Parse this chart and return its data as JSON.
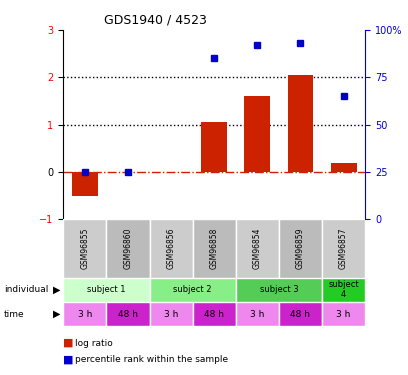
{
  "title": "GDS1940 / 4523",
  "samples": [
    "GSM96855",
    "GSM96860",
    "GSM96856",
    "GSM96858",
    "GSM96854",
    "GSM96859",
    "GSM96857"
  ],
  "log_ratio": [
    -0.5,
    0.0,
    0.0,
    1.05,
    1.6,
    2.05,
    0.2
  ],
  "pct_rank_vals": [
    25,
    25,
    null,
    85,
    92,
    93,
    65
  ],
  "ylim_left": [
    -1.0,
    3.0
  ],
  "ylim_right": [
    0,
    100
  ],
  "yticks_left": [
    -1,
    0,
    1,
    2,
    3
  ],
  "yticks_right": [
    0,
    25,
    50,
    75,
    100
  ],
  "yticklabels_right": [
    "0",
    "25",
    "50",
    "75",
    "100%"
  ],
  "bar_color": "#cc2200",
  "dot_color": "#0000cc",
  "hline_color": "#cc2200",
  "dotted_line_color": "#000000",
  "subject_data": [
    {
      "label": "subject 1",
      "start": 0,
      "end": 2,
      "color": "#ccffcc"
    },
    {
      "label": "subject 2",
      "start": 2,
      "end": 4,
      "color": "#88ee88"
    },
    {
      "label": "subject 3",
      "start": 4,
      "end": 6,
      "color": "#55cc55"
    },
    {
      "label": "subject\n4",
      "start": 6,
      "end": 7,
      "color": "#22cc22"
    }
  ],
  "time_labels": [
    "3 h",
    "48 h",
    "3 h",
    "48 h",
    "3 h",
    "48 h",
    "3 h"
  ],
  "time_colors": [
    "#ee88ee",
    "#cc22cc",
    "#ee88ee",
    "#cc22cc",
    "#ee88ee",
    "#cc22cc",
    "#ee88ee"
  ],
  "cell_colors": [
    "#cccccc",
    "#bbbbbb",
    "#cccccc",
    "#bbbbbb",
    "#cccccc",
    "#bbbbbb",
    "#cccccc"
  ],
  "bg_color": "#ffffff",
  "right_axis_color": "#0000cc",
  "chart_bg": "#ffffff"
}
